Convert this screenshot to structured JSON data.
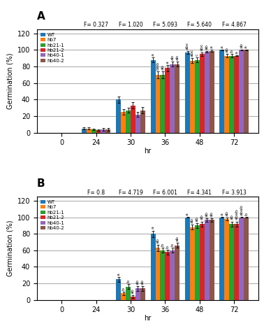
{
  "chart_data": [
    {
      "type": "bar",
      "title": "A",
      "categories": [
        "0",
        "24",
        "30",
        "36",
        "48",
        "72"
      ],
      "series": [
        {
          "name": "WT",
          "values": [
            0,
            5,
            40,
            88,
            97,
            100
          ],
          "errors": [
            0,
            1.5,
            4,
            3,
            2,
            0.5
          ],
          "significance": [
            null,
            null,
            null,
            "a",
            "abc",
            "a"
          ]
        },
        {
          "name": "hb7",
          "values": [
            0,
            5,
            25,
            70,
            87,
            93
          ],
          "errors": [
            0,
            1.5,
            3,
            4,
            3,
            2
          ],
          "significance": [
            null,
            null,
            null,
            "bbb",
            "abc",
            "ab"
          ]
        },
        {
          "name": "hb21-1",
          "values": [
            0,
            4,
            27,
            70,
            88,
            93
          ],
          "errors": [
            0,
            1,
            3,
            4,
            3,
            2
          ],
          "significance": [
            null,
            null,
            null,
            "ab",
            "c",
            "b"
          ]
        },
        {
          "name": "hb21-2",
          "values": [
            0,
            3,
            33,
            78,
            95,
            93
          ],
          "errors": [
            0,
            1,
            4,
            4,
            2,
            0.5
          ],
          "significance": [
            null,
            null,
            null,
            "a",
            "abc",
            "a"
          ]
        },
        {
          "name": "hb40-1",
          "values": [
            0,
            4,
            22,
            83,
            98,
            100
          ],
          "errors": [
            0,
            1.5,
            3,
            3,
            1,
            0.5
          ],
          "significance": [
            null,
            null,
            null,
            "ab",
            "ab",
            "ab"
          ]
        },
        {
          "name": "hb40-2",
          "values": [
            0,
            4,
            27,
            83,
            99,
            100
          ],
          "errors": [
            0,
            1.5,
            4,
            3,
            1,
            0.5
          ],
          "significance": [
            null,
            null,
            null,
            "ab",
            "a",
            "a"
          ]
        }
      ],
      "annotations": [
        {
          "text": "F= 0.327",
          "x": "24"
        },
        {
          "text": "F= 1.020",
          "x": "30"
        },
        {
          "text": "F= 5.093",
          "x": "36"
        },
        {
          "text": "F= 5.640",
          "x": "48"
        },
        {
          "text": "F= 4.867",
          "x": "72"
        }
      ],
      "xlabel": "hr",
      "ylabel": "Germination (%)",
      "ylim": [
        0,
        125
      ],
      "yticks": [
        0,
        20,
        40,
        60,
        80,
        100,
        120
      ],
      "grid": true,
      "legend": "upper left"
    },
    {
      "type": "bar",
      "title": "B",
      "categories": [
        "0",
        "24",
        "30",
        "36",
        "48",
        "72"
      ],
      "series": [
        {
          "name": "WT",
          "values": [
            0,
            0,
            25,
            80,
            100,
            100
          ],
          "errors": [
            0,
            0,
            3,
            4,
            0.5,
            0.5
          ],
          "significance": [
            null,
            null,
            "a",
            "a",
            "a",
            "a"
          ]
        },
        {
          "name": "hb7",
          "values": [
            0,
            0,
            8,
            63,
            88,
            98
          ],
          "errors": [
            0,
            0,
            2,
            4,
            3,
            2
          ],
          "significance": [
            null,
            null,
            "b",
            "ab",
            "ab",
            "ab"
          ]
        },
        {
          "name": "hb21-1",
          "values": [
            0,
            0,
            16,
            60,
            90,
            92
          ],
          "errors": [
            0,
            0,
            3,
            3,
            3,
            3
          ],
          "significance": [
            null,
            null,
            "b",
            "b",
            "ab",
            "ab"
          ]
        },
        {
          "name": "hb21-2",
          "values": [
            0,
            0,
            4,
            58,
            92,
            92
          ],
          "errors": [
            0,
            0,
            2,
            3,
            3,
            3
          ],
          "significance": [
            null,
            null,
            "ab",
            "b",
            "ab",
            "abab"
          ]
        },
        {
          "name": "hb40-1",
          "values": [
            0,
            0,
            14,
            60,
            97,
            100
          ],
          "errors": [
            0,
            0,
            3,
            3,
            2,
            0.5
          ],
          "significance": [
            null,
            null,
            "ab",
            "b",
            "ab",
            "abab"
          ]
        },
        {
          "name": "hb40-2",
          "values": [
            0,
            0,
            14,
            66,
            97,
            100
          ],
          "errors": [
            0,
            0,
            3,
            3,
            2,
            0.5
          ],
          "significance": [
            null,
            null,
            "ab",
            "ab",
            "ab",
            "b"
          ]
        }
      ],
      "annotations": [
        {
          "text": "F= 0.8",
          "x": "24"
        },
        {
          "text": "F= 4.719",
          "x": "30"
        },
        {
          "text": "F= 6.001",
          "x": "36"
        },
        {
          "text": "F= 4.341",
          "x": "48"
        },
        {
          "text": "F= 3.913",
          "x": "72"
        }
      ],
      "xlabel": "hr",
      "ylabel": "Germination (%)",
      "ylim": [
        0,
        125
      ],
      "yticks": [
        0,
        20,
        40,
        60,
        80,
        100,
        120
      ],
      "grid": true,
      "legend": "upper left"
    }
  ]
}
